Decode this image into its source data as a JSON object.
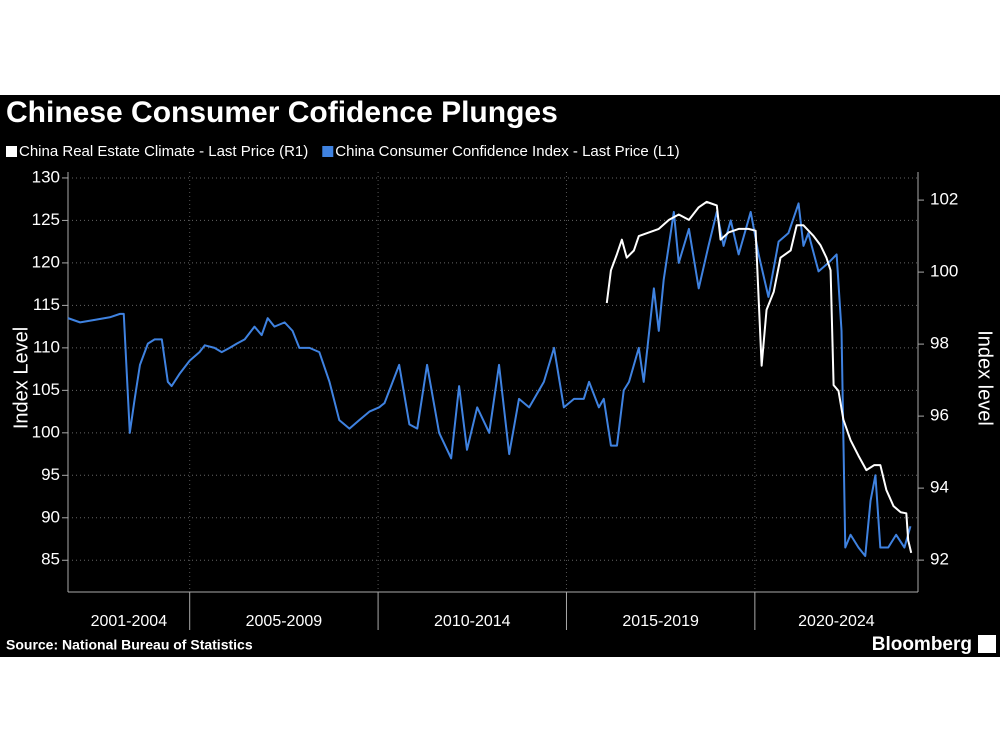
{
  "chart_data": {
    "type": "line",
    "title": "Chinese Consumer Cofidence Plunges",
    "source": "Source: National Bureau of Statistics",
    "brand": "Bloomberg",
    "y_label": "Index Level",
    "y2_label": "Index level",
    "legend": "top-left",
    "grid": true,
    "categories": [
      "2001-2004",
      "2005-2009",
      "2010-2014",
      "2015-2019",
      "2020-2024"
    ],
    "xlim": [
      2001.77,
      2024.33
    ],
    "xticks": [
      2005,
      2010,
      2015,
      2020
    ],
    "ylim": [
      81.5,
      130.7
    ],
    "yticks": [
      85,
      90,
      95,
      100,
      105,
      110,
      115,
      120,
      125,
      130
    ],
    "y2lim": [
      91.17,
      102.78
    ],
    "y2ticks": [
      92,
      94,
      96,
      98,
      100,
      102
    ],
    "series": [
      {
        "name": "China Real Estate Climate - Last Price (R1)",
        "color": "#ffffff",
        "axis": "y2",
        "x": [
          2016.07,
          2016.18,
          2016.34,
          2016.47,
          2016.6,
          2016.79,
          2016.92,
          2017.19,
          2017.45,
          2017.72,
          2017.98,
          2018.25,
          2018.51,
          2018.72,
          2018.99,
          2019.09,
          2019.3,
          2019.57,
          2019.83,
          2020.02,
          2020.18,
          2020.31,
          2020.5,
          2020.68,
          2020.95,
          2021.11,
          2021.29,
          2021.56,
          2021.74,
          2021.9,
          2022.01,
          2022.09,
          2022.22,
          2022.35,
          2022.54,
          2022.75,
          2022.96,
          2023.17,
          2023.33,
          2023.49,
          2023.68,
          2023.87,
          2024.02,
          2024.07,
          2024.15
        ],
        "values": [
          99.14,
          100.05,
          100.5,
          100.9,
          100.4,
          100.6,
          101.0,
          101.1,
          101.2,
          101.45,
          101.6,
          101.45,
          101.8,
          101.95,
          101.85,
          100.9,
          101.1,
          101.2,
          101.2,
          101.15,
          97.4,
          98.95,
          99.45,
          100.4,
          100.6,
          101.3,
          101.3,
          101.0,
          100.75,
          100.4,
          100.05,
          96.86,
          96.7,
          95.9,
          95.33,
          94.9,
          94.5,
          94.64,
          94.64,
          93.95,
          93.5,
          93.33,
          93.3,
          92.55,
          92.2
        ]
      },
      {
        "name": "China Consumer Confidence Index - Last Price (L1)",
        "color": "#3f82e0",
        "axis": "y",
        "x": [
          2001.77,
          2002.09,
          2002.48,
          2002.88,
          2003.15,
          2003.25,
          2003.33,
          2003.41,
          2003.54,
          2003.68,
          2003.89,
          2004.07,
          2004.26,
          2004.42,
          2004.52,
          2004.74,
          2005.0,
          2005.26,
          2005.4,
          2005.66,
          2005.85,
          2006.06,
          2006.25,
          2006.46,
          2006.72,
          2006.91,
          2007.07,
          2007.25,
          2007.52,
          2007.73,
          2007.91,
          2008.18,
          2008.44,
          2008.71,
          2008.97,
          2009.24,
          2009.5,
          2009.77,
          2010.03,
          2010.17,
          2010.3,
          2010.56,
          2010.83,
          2011.04,
          2011.3,
          2011.62,
          2011.94,
          2012.15,
          2012.36,
          2012.63,
          2012.95,
          2013.21,
          2013.48,
          2013.74,
          2014.01,
          2014.4,
          2014.67,
          2014.93,
          2015.2,
          2015.46,
          2015.6,
          2015.86,
          2015.99,
          2016.18,
          2016.34,
          2016.52,
          2016.66,
          2016.92,
          2017.05,
          2017.32,
          2017.45,
          2017.58,
          2017.85,
          2017.98,
          2018.25,
          2018.51,
          2018.77,
          2018.99,
          2019.17,
          2019.36,
          2019.57,
          2019.89,
          2020.1,
          2020.36,
          2020.63,
          2020.89,
          2021.16,
          2021.29,
          2021.42,
          2021.69,
          2021.95,
          2022.17,
          2022.3,
          2022.4,
          2022.54,
          2022.75,
          2022.93,
          2023.07,
          2023.2,
          2023.33,
          2023.54,
          2023.75,
          2023.97,
          2024.13
        ],
        "values": [
          113.5,
          113,
          113.3,
          113.6,
          114,
          114,
          107,
          100,
          104,
          108,
          110.5,
          111,
          111,
          106,
          105.5,
          107,
          108.5,
          109.5,
          110.3,
          110,
          109.5,
          110,
          110.5,
          111,
          112.5,
          111.5,
          113.5,
          112.5,
          113,
          112,
          110,
          110,
          109.5,
          106,
          101.5,
          100.5,
          101.5,
          102.5,
          103,
          103.5,
          105,
          108,
          101,
          100.5,
          108,
          100,
          97,
          105.5,
          98,
          103,
          100,
          108,
          97.5,
          104,
          103,
          106,
          110,
          103,
          104,
          104,
          106,
          103,
          104,
          98.5,
          98.5,
          105,
          106,
          110,
          106,
          117,
          112,
          118,
          126,
          120,
          124,
          117,
          122,
          126,
          122,
          125,
          121,
          126,
          121,
          116,
          122.5,
          123.5,
          127,
          122,
          123.5,
          119,
          120,
          121,
          112,
          86.5,
          88,
          86.5,
          85.5,
          92,
          95,
          86.5,
          86.5,
          88,
          86.5,
          89
        ]
      }
    ]
  }
}
